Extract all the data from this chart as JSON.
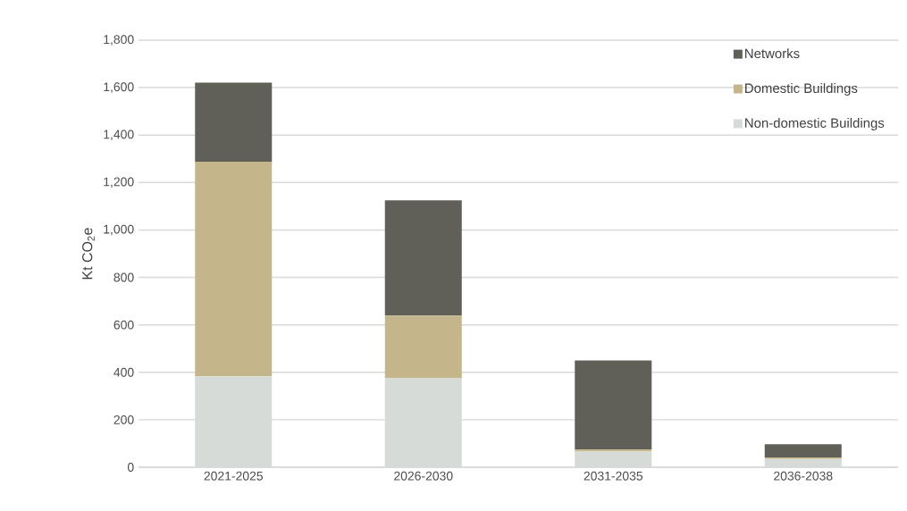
{
  "chart_data": {
    "type": "bar",
    "stacked": true,
    "ylabel": "Kt CO$_{2}$e",
    "categories": [
      "2021-2025",
      "2026-2030",
      "2031-2035",
      "2036-2038"
    ],
    "series": [
      {
        "name": "Non-domestic Buildings",
        "color": "#d6dbd7",
        "values": [
          383,
          375,
          66,
          35
        ]
      },
      {
        "name": "Domestic Buildings",
        "color": "#c4b68a",
        "values": [
          905,
          264,
          8,
          6
        ]
      },
      {
        "name": "Networks",
        "color": "#605f58",
        "values": [
          333,
          486,
          376,
          56
        ]
      }
    ],
    "ylim": [
      0,
      1800
    ],
    "yticks": [
      {
        "value": 0,
        "label": "0"
      },
      {
        "value": 200,
        "label": "200"
      },
      {
        "value": 400,
        "label": "400"
      },
      {
        "value": 600,
        "label": "600"
      },
      {
        "value": 800,
        "label": "800"
      },
      {
        "value": 1000,
        "label": "1,000"
      },
      {
        "value": 1200,
        "label": "1,200"
      },
      {
        "value": 1400,
        "label": "1,400"
      },
      {
        "value": 1600,
        "label": "1,600"
      },
      {
        "value": 1800,
        "label": "1,800"
      }
    ],
    "grid": "y",
    "legend": "top right"
  }
}
